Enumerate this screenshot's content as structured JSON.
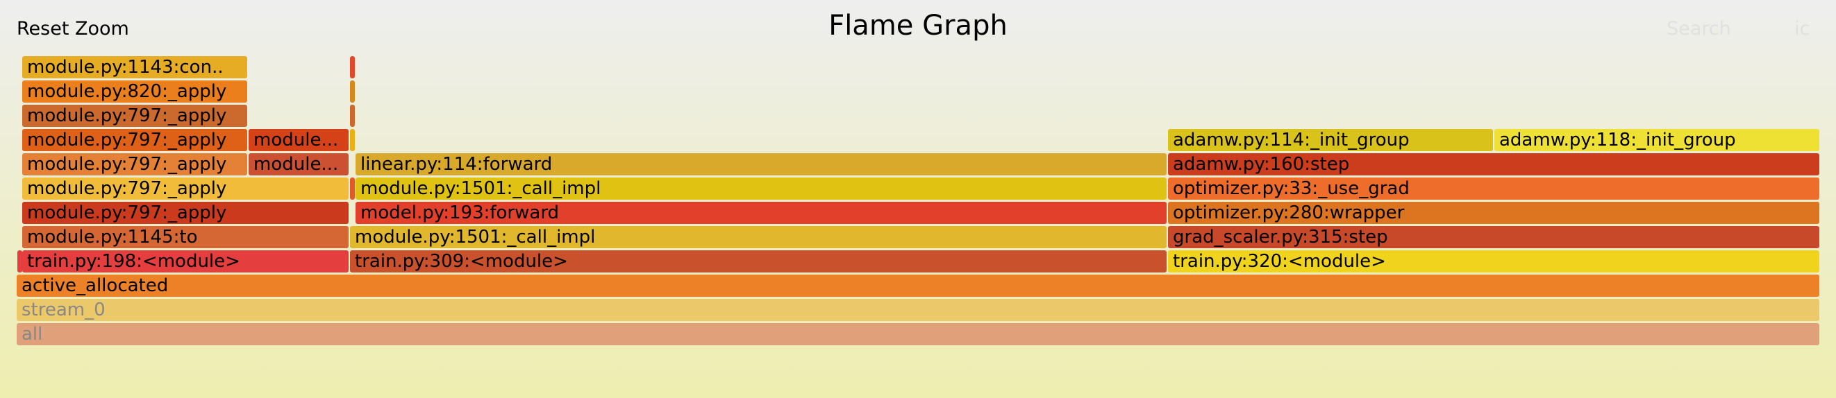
{
  "toolbar": {
    "reset_zoom": "Reset Zoom",
    "title": "Flame Graph",
    "search": "Search",
    "ignorecase": "ic"
  },
  "frames": [
    {
      "label": "all",
      "color": "#e0a07a",
      "dim": true
    },
    {
      "label": "stream_0",
      "color": "#ebc96a",
      "dim": true
    },
    {
      "label": "active_allocated",
      "color": "#ec8127"
    },
    {
      "label": "",
      "color": "#e43e3e"
    },
    {
      "label": "train.py:198:<module>",
      "color": "#e53e3e"
    },
    {
      "label": "train.py:309:<module>",
      "color": "#c9512c"
    },
    {
      "label": "train.py:320:<module>",
      "color": "#f0d31c"
    },
    {
      "label": "module.py:1145:to",
      "color": "#d46733"
    },
    {
      "label": "module.py:1501:_call_impl",
      "color": "#e0b72d"
    },
    {
      "label": "grad_scaler.py:315:step",
      "color": "#c8482a"
    },
    {
      "label": "module.py:797:_apply",
      "color": "#cc3a1d"
    },
    {
      "label": "model.py:193:forward",
      "color": "#e2402a"
    },
    {
      "label": "optimizer.py:280:wrapper",
      "color": "#dc7420"
    },
    {
      "label": "module.py:797:_apply",
      "color": "#f1bc3a"
    },
    {
      "label": "",
      "color": "#e05a2a"
    },
    {
      "label": "module.py:1501:_call_impl",
      "color": "#e0c312"
    },
    {
      "label": "optimizer.py:33:_use_grad",
      "color": "#ef6d2b"
    },
    {
      "label": "module.py:797:_apply",
      "color": "#e58136"
    },
    {
      "label": "module...",
      "color": "#cc5032"
    },
    {
      "label": "linear.py:114:forward",
      "color": "#d9a92c"
    },
    {
      "label": "adamw.py:160:step",
      "color": "#cc3d1d"
    },
    {
      "label": "module.py:797:_apply",
      "color": "#df6017"
    },
    {
      "label": "module...",
      "color": "#d54218"
    },
    {
      "label": "",
      "color": "#e8b114"
    },
    {
      "label": "adamw.py:114:_init_group",
      "color": "#d9c21a"
    },
    {
      "label": "adamw.py:118:_init_group",
      "color": "#efe133"
    },
    {
      "label": "module.py:797:_apply",
      "color": "#cc6a2e"
    },
    {
      "label": "",
      "color": "#cc6a2e"
    },
    {
      "label": "module.py:820:_apply",
      "color": "#ea7f1b"
    },
    {
      "label": "",
      "color": "#d68a1d"
    },
    {
      "label": "module.py:1143:con..",
      "color": "#e6ac23"
    },
    {
      "label": "",
      "color": "#e04a2a"
    }
  ]
}
